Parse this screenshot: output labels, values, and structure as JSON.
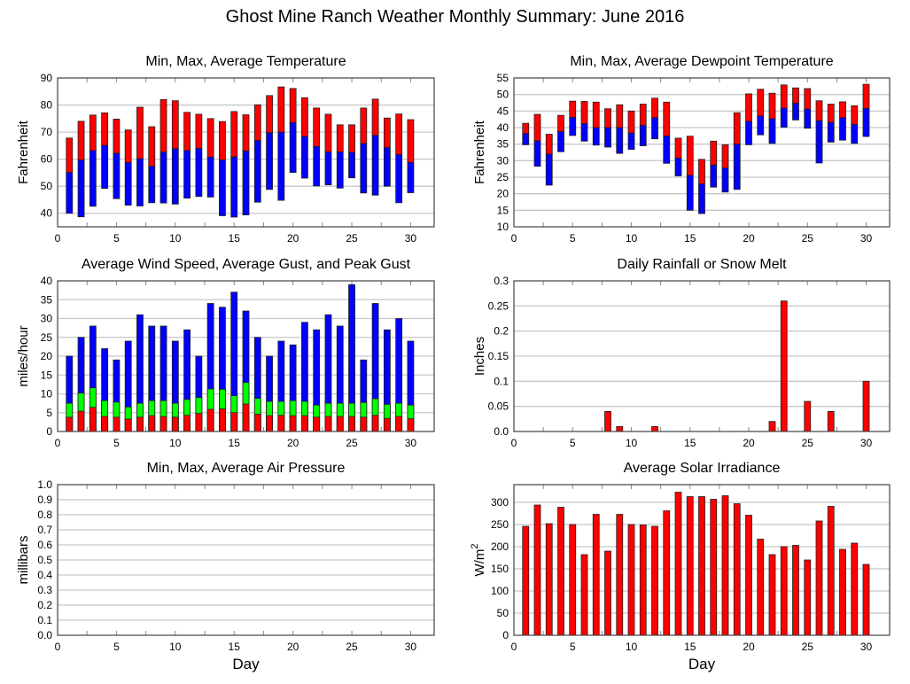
{
  "page_title": "Ghost Mine Ranch Weather Monthly Summary: June 2016",
  "colors": {
    "red": "#ff0000",
    "blue": "#0000ff",
    "green": "#00ff00",
    "grid": "#c8c8c8",
    "axis": "#444444"
  },
  "chart_data": [
    {
      "id": "temperature",
      "type": "bar",
      "subtype": "floating-range",
      "title": "Min, Max, Average Temperature",
      "xlabel": "",
      "ylabel": "Fahrenheit",
      "xlim": [
        0,
        32
      ],
      "ylim": [
        35,
        90
      ],
      "xticks": [
        0,
        5,
        10,
        15,
        20,
        25,
        30
      ],
      "yticks": [
        40,
        50,
        60,
        70,
        80,
        90
      ],
      "x": [
        1,
        2,
        3,
        4,
        5,
        6,
        7,
        8,
        9,
        10,
        11,
        12,
        13,
        14,
        15,
        16,
        17,
        18,
        19,
        20,
        21,
        22,
        23,
        24,
        25,
        26,
        27,
        28,
        29,
        30
      ],
      "series": [
        {
          "name": "Min",
          "values": [
            40,
            38.7,
            42.6,
            49.2,
            45.4,
            43,
            42.7,
            43.9,
            43.8,
            43.4,
            45.6,
            46.2,
            46,
            39.1,
            38.6,
            39.4,
            44.1,
            48.8,
            44.8,
            55.1,
            53,
            50.1,
            50.5,
            49.3,
            53.1,
            47.5,
            46.7,
            50,
            43.9,
            47.6
          ]
        },
        {
          "name": "Average",
          "values": [
            55.1,
            59.7,
            63.2,
            65.1,
            62.2,
            58.8,
            60.2,
            57.4,
            62.6,
            63.9,
            63.2,
            64,
            60.8,
            59.7,
            60.9,
            63,
            66.9,
            69.8,
            70,
            73.5,
            68.4,
            64.7,
            62.7,
            62.7,
            62.5,
            65.8,
            68.8,
            64.3,
            61.7,
            58.8
          ]
        },
        {
          "name": "Max",
          "values": [
            67.8,
            74,
            76.3,
            77.1,
            74.8,
            70.8,
            79.2,
            72,
            82,
            81.6,
            77.3,
            76.6,
            75,
            73.9,
            77.6,
            76.4,
            80.1,
            83.5,
            86.7,
            86.1,
            82.7,
            78.9,
            76.6,
            72.7,
            72.7,
            78.9,
            82.2,
            75.2,
            76.7,
            74.6
          ]
        }
      ]
    },
    {
      "id": "dewpoint",
      "type": "bar",
      "subtype": "floating-range",
      "title": "Min, Max, Average Dewpoint Temperature",
      "xlabel": "",
      "ylabel": "Fahrenheit",
      "xlim": [
        0,
        32
      ],
      "ylim": [
        10,
        55
      ],
      "xticks": [
        0,
        5,
        10,
        15,
        20,
        25,
        30
      ],
      "yticks": [
        10,
        15,
        20,
        25,
        30,
        35,
        40,
        45,
        50,
        55
      ],
      "x": [
        1,
        2,
        3,
        4,
        5,
        6,
        7,
        8,
        9,
        10,
        11,
        12,
        13,
        14,
        15,
        16,
        17,
        18,
        19,
        20,
        21,
        22,
        23,
        24,
        25,
        26,
        27,
        28,
        29,
        30
      ],
      "series": [
        {
          "name": "Min",
          "values": [
            34.8,
            28.3,
            22.6,
            32.7,
            37.6,
            35.9,
            34.7,
            34.1,
            32.2,
            33.4,
            34.5,
            36.6,
            29.2,
            25.4,
            15,
            14,
            22,
            20.5,
            21.3,
            34.8,
            37.8,
            35.2,
            40.1,
            42.3,
            39.8,
            29.3,
            35.6,
            36.2,
            35.2,
            37.3
          ]
        },
        {
          "name": "Average",
          "values": [
            38.2,
            36,
            32,
            38.8,
            43.1,
            41.2,
            40,
            40,
            40,
            38.4,
            40.7,
            43,
            37.5,
            30.8,
            25.6,
            23,
            28.7,
            27.8,
            35,
            41.9,
            43.5,
            42.7,
            45.9,
            47.4,
            45.6,
            42.1,
            41.6,
            43,
            41,
            45.8
          ]
        },
        {
          "name": "Max",
          "values": [
            41.3,
            44,
            38,
            43.7,
            48,
            47.9,
            47.7,
            45.7,
            46.9,
            45,
            47.1,
            48.9,
            47.7,
            36.8,
            37.4,
            30.4,
            35.9,
            34.8,
            44.5,
            50.2,
            51.6,
            50.4,
            52.9,
            52,
            51.8,
            48.1,
            47.1,
            47.8,
            46.6,
            53.1
          ]
        }
      ]
    },
    {
      "id": "wind",
      "type": "bar",
      "subtype": "overlaid",
      "title": "Average Wind Speed, Average Gust, and Peak Gust",
      "xlabel": "",
      "ylabel": "miles/hour",
      "xlim": [
        0,
        32
      ],
      "ylim": [
        0,
        40
      ],
      "xticks": [
        0,
        5,
        10,
        15,
        20,
        25,
        30
      ],
      "yticks": [
        0,
        5,
        10,
        15,
        20,
        25,
        30,
        35,
        40
      ],
      "x": [
        1,
        2,
        3,
        4,
        5,
        6,
        7,
        8,
        9,
        10,
        11,
        12,
        13,
        14,
        15,
        16,
        17,
        18,
        19,
        20,
        21,
        22,
        23,
        24,
        25,
        26,
        27,
        28,
        29,
        30
      ],
      "series": [
        {
          "name": "Peak Gust",
          "values": [
            20,
            25,
            28,
            22,
            19,
            24,
            31,
            28,
            28,
            24,
            27,
            20,
            34,
            33,
            37,
            32,
            25,
            20,
            24,
            23,
            29,
            27,
            31,
            28,
            39,
            19,
            34,
            27,
            30,
            24
          ]
        },
        {
          "name": "Average Gust",
          "values": [
            7.5,
            10.2,
            11.6,
            8.2,
            7.8,
            6.5,
            7.5,
            8.2,
            8.2,
            7.5,
            8.5,
            9,
            11.3,
            11.2,
            9.5,
            13,
            8.8,
            8,
            8,
            8.2,
            8,
            7,
            7.5,
            7.5,
            7.5,
            7.7,
            8.7,
            7.2,
            7.5,
            7
          ]
        },
        {
          "name": "Average Wind Speed",
          "values": [
            3.8,
            5.4,
            6.4,
            4,
            3.8,
            3.3,
            3.8,
            4.2,
            4,
            3.8,
            4.3,
            4.8,
            5.9,
            6,
            5,
            7.3,
            4.6,
            4.2,
            4.3,
            4.2,
            4.2,
            3.8,
            4,
            4,
            4,
            3.8,
            4.3,
            3.5,
            4,
            3.4
          ]
        }
      ]
    },
    {
      "id": "rainfall",
      "type": "bar",
      "title": "Daily Rainfall or Snow Melt",
      "xlabel": "",
      "ylabel": "Inches",
      "xlim": [
        0,
        32
      ],
      "ylim": [
        0,
        0.3
      ],
      "xticks": [
        0,
        5,
        10,
        15,
        20,
        25,
        30
      ],
      "yticks": [
        "0.0",
        "0.05",
        "0.1",
        "0.15",
        "0.2",
        "0.25",
        "0.3"
      ],
      "x": [
        1,
        2,
        3,
        4,
        5,
        6,
        7,
        8,
        9,
        10,
        11,
        12,
        13,
        14,
        15,
        16,
        17,
        18,
        19,
        20,
        21,
        22,
        23,
        24,
        25,
        26,
        27,
        28,
        29,
        30
      ],
      "values": [
        0,
        0,
        0,
        0,
        0,
        0,
        0,
        0.04,
        0.01,
        0,
        0,
        0.01,
        0,
        0,
        0,
        0,
        0,
        0,
        0,
        0,
        0,
        0.02,
        0.26,
        0,
        0.06,
        0,
        0.04,
        0,
        0,
        0.1
      ]
    },
    {
      "id": "pressure",
      "type": "bar",
      "title": "Min, Max, Average Air Pressure",
      "xlabel": "Day",
      "ylabel": "millibars",
      "xlim": [
        0,
        32
      ],
      "ylim": [
        0,
        1
      ],
      "xticks": [
        0,
        5,
        10,
        15,
        20,
        25,
        30
      ],
      "yticks": [
        "0.0",
        "0.1",
        "0.2",
        "0.3",
        "0.4",
        "0.5",
        "0.6",
        "0.7",
        "0.8",
        "0.9",
        "1.0"
      ],
      "values": []
    },
    {
      "id": "solar",
      "type": "bar",
      "title": "Average Solar Irradiance",
      "xlabel": "Day",
      "ylabel": "W/m",
      "ylabel_sup": "2",
      "xlim": [
        0,
        32
      ],
      "ylim": [
        0,
        340
      ],
      "xticks": [
        0,
        5,
        10,
        15,
        20,
        25,
        30
      ],
      "yticks": [
        0,
        50,
        100,
        150,
        200,
        250,
        300
      ],
      "x": [
        1,
        2,
        3,
        4,
        5,
        6,
        7,
        8,
        9,
        10,
        11,
        12,
        13,
        14,
        15,
        16,
        17,
        18,
        19,
        20,
        21,
        22,
        23,
        24,
        25,
        26,
        27,
        28,
        29,
        30
      ],
      "values": [
        246,
        294,
        252,
        289,
        250,
        182,
        273,
        190,
        273,
        250,
        249,
        246,
        281,
        323,
        313,
        313,
        307,
        315,
        297,
        271,
        217,
        182,
        200,
        203,
        170,
        258,
        291,
        194,
        208,
        160
      ]
    }
  ]
}
